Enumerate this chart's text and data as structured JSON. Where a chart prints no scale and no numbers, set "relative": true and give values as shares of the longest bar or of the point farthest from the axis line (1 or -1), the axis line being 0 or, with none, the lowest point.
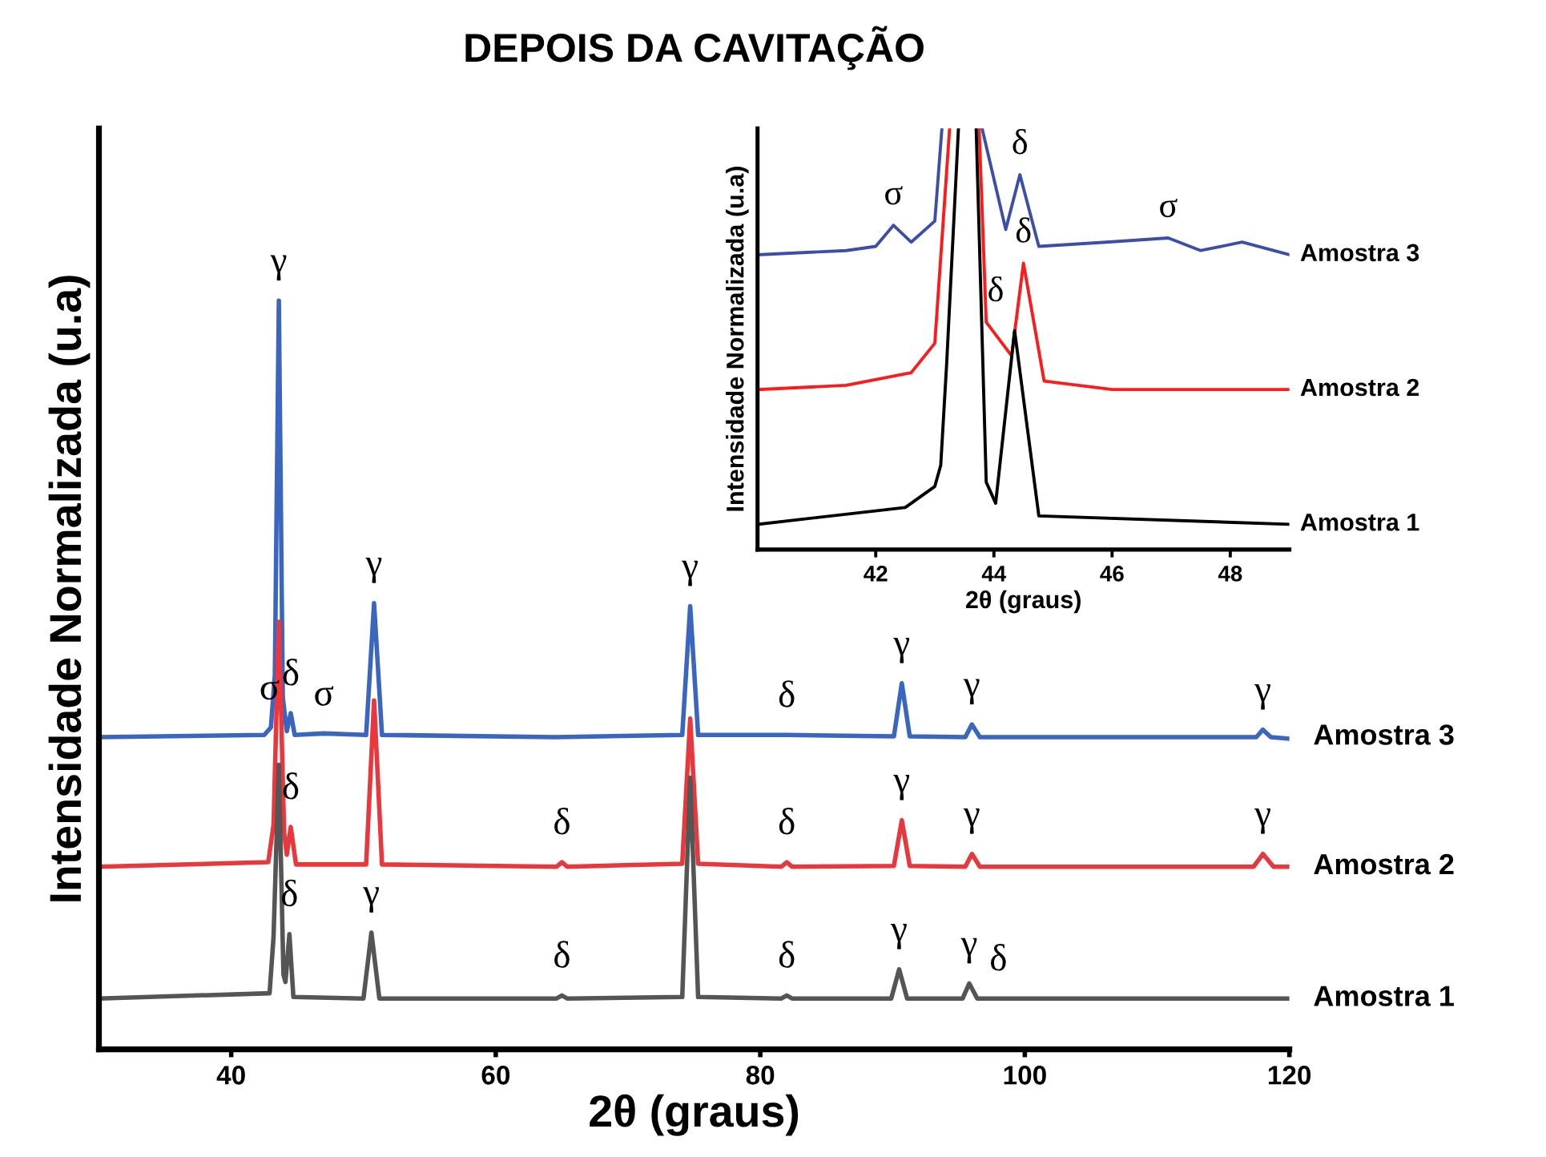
{
  "chart_data": [
    {
      "type": "line",
      "title": "DEPOIS DA CAVITAÇÃO",
      "xlabel": "2θ (graus)",
      "ylabel": "Intensidade Normalizada (u.a)",
      "relative": true,
      "xlim": [
        30,
        120
      ],
      "xticks": [
        40,
        60,
        80,
        100,
        120
      ],
      "tick_labels": "x",
      "grid": false,
      "legend": false,
      "series": [
        {
          "name": "Amostra 3",
          "color": "#3a66c0",
          "x": [
            30,
            42.5,
            43.0,
            43.3,
            43.6,
            43.9,
            44.2,
            44.5,
            44.8,
            47.0,
            50.2,
            50.8,
            51.4,
            64.5,
            74.1,
            74.7,
            75.3,
            82.0,
            90.1,
            90.7,
            91.3,
            95.5,
            96.0,
            96.6,
            117.5,
            118.0,
            118.6,
            120
          ],
          "values": [
            0.417,
            0.42,
            0.43,
            0.5,
            1.0,
            0.47,
            0.425,
            0.449,
            0.42,
            0.422,
            0.42,
            0.596,
            0.42,
            0.417,
            0.42,
            0.592,
            0.42,
            0.42,
            0.418,
            0.489,
            0.418,
            0.417,
            0.434,
            0.417,
            0.417,
            0.427,
            0.417,
            0.415
          ]
        },
        {
          "name": "Amostra 2",
          "color": "#e8383d",
          "x": [
            30,
            42.8,
            43.2,
            43.6,
            44.0,
            44.2,
            44.5,
            44.9,
            50.2,
            50.8,
            51.4,
            64.6,
            65.0,
            65.4,
            74.1,
            74.7,
            75.3,
            81.6,
            82.0,
            82.4,
            90.1,
            90.7,
            91.3,
            95.5,
            96.0,
            96.6,
            117.3,
            118.0,
            118.8,
            120
          ],
          "values": [
            0.244,
            0.25,
            0.3,
            0.571,
            0.29,
            0.26,
            0.297,
            0.247,
            0.247,
            0.466,
            0.247,
            0.244,
            0.25,
            0.244,
            0.248,
            0.442,
            0.248,
            0.244,
            0.25,
            0.244,
            0.245,
            0.306,
            0.245,
            0.244,
            0.261,
            0.244,
            0.244,
            0.261,
            0.244,
            0.244
          ]
        },
        {
          "name": "Amostra 1",
          "color": "#555555",
          "x": [
            30,
            42.9,
            43.2,
            43.6,
            43.95,
            44.1,
            44.4,
            44.7,
            50.0,
            50.6,
            51.2,
            64.6,
            65.0,
            65.4,
            74.1,
            74.7,
            75.3,
            81.6,
            82.0,
            82.4,
            89.9,
            90.5,
            91.1,
            95.3,
            95.8,
            96.4,
            120
          ],
          "values": [
            0.068,
            0.075,
            0.15,
            0.38,
            0.1,
            0.09,
            0.154,
            0.07,
            0.068,
            0.156,
            0.068,
            0.068,
            0.072,
            0.068,
            0.07,
            0.363,
            0.07,
            0.068,
            0.072,
            0.068,
            0.068,
            0.107,
            0.068,
            0.068,
            0.088,
            0.068,
            0.068
          ]
        }
      ],
      "annotations": [
        {
          "text": "γ",
          "x": 43.6,
          "y": 1.0
        },
        {
          "text": "σ",
          "x": 42.9,
          "y": 0.43
        },
        {
          "text": "δ",
          "x": 44.5,
          "y": 0.449
        },
        {
          "text": "σ",
          "x": 47.0,
          "y": 0.422
        },
        {
          "text": "γ",
          "x": 50.8,
          "y": 0.596
        },
        {
          "text": "γ",
          "x": 74.7,
          "y": 0.592
        },
        {
          "text": "δ",
          "x": 82.0,
          "y": 0.42
        },
        {
          "text": "γ",
          "x": 90.7,
          "y": 0.489
        },
        {
          "text": "γ",
          "x": 96.0,
          "y": 0.434
        },
        {
          "text": "γ",
          "x": 118.0,
          "y": 0.427
        },
        {
          "text": "δ",
          "x": 44.5,
          "y": 0.297
        },
        {
          "text": "δ",
          "x": 65.0,
          "y": 0.25
        },
        {
          "text": "δ",
          "x": 82.0,
          "y": 0.25
        },
        {
          "text": "γ",
          "x": 90.7,
          "y": 0.306
        },
        {
          "text": "γ",
          "x": 96.0,
          "y": 0.261
        },
        {
          "text": "γ",
          "x": 118.0,
          "y": 0.261
        },
        {
          "text": "δ",
          "x": 44.4,
          "y": 0.154
        },
        {
          "text": "γ",
          "x": 50.6,
          "y": 0.156
        },
        {
          "text": "δ",
          "x": 65.0,
          "y": 0.072
        },
        {
          "text": "δ",
          "x": 82.0,
          "y": 0.072
        },
        {
          "text": "γ",
          "x": 90.5,
          "y": 0.107
        },
        {
          "text": "γ",
          "x": 95.8,
          "y": 0.088
        },
        {
          "text": "δ",
          "x": 98.0,
          "y": 0.068
        }
      ]
    },
    {
      "type": "line",
      "xlabel": "2θ (graus)",
      "ylabel": "Intensidade Normalizada (u.a)",
      "relative": true,
      "xlim": [
        40,
        49
      ],
      "xticks": [
        42,
        44,
        46,
        48
      ],
      "tick_labels": "x",
      "grid": false,
      "legend": false,
      "series": [
        {
          "name": "Amostra 3",
          "color": "#3b4fa8",
          "x": [
            40,
            41.5,
            42.0,
            42.3,
            42.6,
            43.0,
            43.12,
            43.5,
            43.8,
            44.2,
            44.44,
            44.76,
            45.9,
            46.95,
            47.5,
            48.2,
            49
          ],
          "values": [
            0.7,
            0.71,
            0.72,
            0.77,
            0.73,
            0.78,
            1.0,
            null,
            1.0,
            0.76,
            0.89,
            0.72,
            0.73,
            0.74,
            0.71,
            0.73,
            0.7
          ]
        },
        {
          "name": "Amostra 2",
          "color": "#ff1a1a",
          "x": [
            40,
            41.5,
            42.6,
            43.0,
            43.25,
            43.5,
            43.75,
            43.87,
            44.3,
            44.5,
            44.85,
            46,
            49
          ],
          "values": [
            0.38,
            0.39,
            0.42,
            0.49,
            1.0,
            null,
            1.0,
            0.54,
            0.46,
            0.68,
            0.4,
            0.38,
            0.38
          ]
        },
        {
          "name": "Amostra 1",
          "color": "#000000",
          "x": [
            40,
            42.5,
            43.0,
            43.1,
            43.2,
            43.4,
            43.5,
            43.7,
            43.87,
            44.03,
            44.35,
            44.76,
            49
          ],
          "values": [
            0.06,
            0.1,
            0.15,
            0.2,
            0.44,
            1.0,
            null,
            1.0,
            0.16,
            0.11,
            0.52,
            0.08,
            0.06
          ]
        }
      ],
      "annotations": [
        {
          "text": "σ",
          "x": 42.3,
          "y": 0.77
        },
        {
          "text": "δ",
          "x": 44.44,
          "y": 0.89
        },
        {
          "text": "δ",
          "x": 44.5,
          "y": 0.68
        },
        {
          "text": "δ",
          "x": 44.03,
          "y": 0.54
        },
        {
          "text": "σ",
          "x": 46.95,
          "y": 0.74
        }
      ]
    }
  ]
}
